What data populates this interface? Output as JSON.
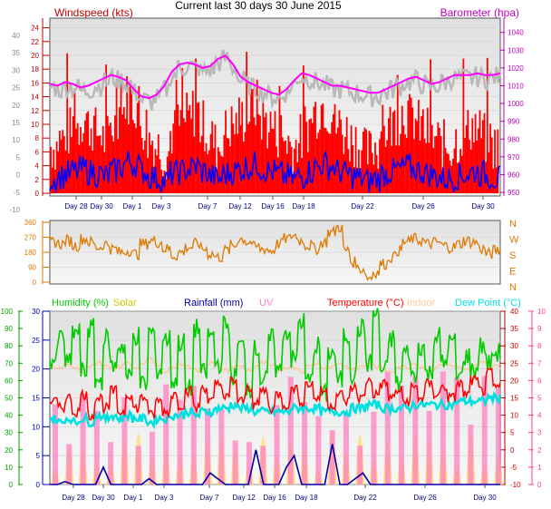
{
  "header": {
    "title": "Current last 30 days 30 June 2015"
  },
  "colors": {
    "windspeed": "#ff0000",
    "windgust": "#ff0000",
    "windavg": "#0000ff",
    "barometer": "#ff00ff",
    "barometer_gray": "#b8b8b8",
    "direction": "#e07800",
    "humidity": "#00cc00",
    "solar": "#c8c800",
    "rainfall": "#0000aa",
    "uv": "#ff80c0",
    "temperature": "#ff0000",
    "indoor": "#ffc8a0",
    "dewpoint": "#00e0e0",
    "axis_left_top": "#c00000",
    "axis_right_top": "#c000c0",
    "axis_left_bottom": "#00a000",
    "axis_right_bottom": "#ff4080",
    "plot_bg_top": "#e8e8e8",
    "plot_bg_bottom": "#ffffff"
  },
  "chart_data": [
    {
      "type": "line",
      "panel": "wind",
      "legend": {
        "left": "Windspeed (kts)",
        "right": "Barometer (hpa)"
      },
      "x_ticks": [
        "Day 28",
        "Day 30",
        "Day 1",
        "Day 3",
        "Day 7",
        "Day 12",
        "Day 16",
        "Day 18",
        "Day 22",
        "Day 26",
        "Day 30"
      ],
      "left_axis_outer": [
        40,
        35,
        30,
        25,
        20,
        15,
        10,
        5,
        0,
        -5,
        -10
      ],
      "left_axis_inner": [
        24,
        22,
        20,
        18,
        16,
        14,
        12,
        10,
        8,
        6,
        4,
        2,
        0
      ],
      "right_axis": [
        1040,
        1030,
        1020,
        1010,
        1000,
        990,
        980,
        970,
        960,
        950
      ],
      "ylim_windspeed": [
        0,
        25
      ],
      "ylim_barometer": [
        948,
        1048
      ],
      "series": [
        {
          "name": "Windspeed (kts)",
          "values": [
            6,
            7,
            8,
            9,
            10,
            9,
            8,
            7,
            9,
            11,
            13,
            12,
            9,
            7,
            6,
            5,
            8,
            9,
            10,
            11,
            9,
            7,
            6,
            8,
            9,
            10,
            11,
            12,
            10,
            9,
            8,
            7,
            6,
            7,
            9,
            11,
            12,
            11,
            9,
            8,
            7,
            6,
            5,
            6,
            8,
            9,
            10,
            11,
            10,
            9,
            8,
            7,
            6,
            6,
            7,
            8,
            9,
            8,
            7,
            6
          ]
        },
        {
          "name": "Barometer (hpa)",
          "values": [
            1011,
            1010,
            1012,
            1011,
            1009,
            1010,
            1012,
            1014,
            1016,
            1015,
            1013,
            1008,
            1004,
            1003,
            1005,
            1010,
            1018,
            1022,
            1023,
            1022,
            1020,
            1021,
            1025,
            1027,
            1022,
            1015,
            1012,
            1010,
            1008,
            1006,
            1005,
            1008,
            1013,
            1017,
            1016,
            1014,
            1012,
            1010,
            1010,
            1009,
            1008,
            1007,
            1006,
            1006,
            1008,
            1010,
            1012,
            1014,
            1015,
            1013,
            1011,
            1012,
            1014,
            1016,
            1016,
            1016,
            1017,
            1016,
            1016,
            1017
          ]
        }
      ]
    },
    {
      "type": "line",
      "panel": "direction",
      "right_labels": [
        "N",
        "W",
        "S",
        "E",
        "N"
      ],
      "left_axis": [
        360,
        270,
        180,
        90,
        0
      ],
      "ylim": [
        0,
        360
      ],
      "series": [
        {
          "name": "direction",
          "values": [
            240,
            230,
            250,
            220,
            260,
            240,
            210,
            230,
            200,
            180,
            190,
            170,
            230,
            250,
            240,
            200,
            160,
            180,
            210,
            230,
            200,
            170,
            150,
            190,
            220,
            260,
            240,
            210,
            200,
            190,
            230,
            260,
            280,
            250,
            220,
            200,
            240,
            300,
            330,
            190,
            120,
            80,
            30,
            60,
            110,
            150,
            190,
            240,
            260,
            250,
            230,
            240,
            220,
            210,
            230,
            250,
            240,
            200,
            170,
            190
          ]
        }
      ]
    },
    {
      "type": "line",
      "panel": "temperature",
      "legend": [
        "Humidity (%)",
        "Solar",
        "Rainfall (mm)",
        "UV",
        "Temperature (°C)",
        "Indoor",
        "Dew Point (°C)"
      ],
      "x_ticks": [
        "Day 28",
        "Day 30",
        "Day 1",
        "Day 3",
        "Day 7",
        "Day 12",
        "Day 16",
        "Day 18",
        "Day 22",
        "Day 26",
        "Day 30"
      ],
      "axis_humidity": [
        100,
        90,
        80,
        70,
        60,
        50,
        40,
        30,
        20,
        10,
        0
      ],
      "axis_rain": [
        30,
        25,
        20,
        15,
        10,
        5,
        0
      ],
      "axis_temp": [
        40,
        35,
        30,
        25,
        20,
        15,
        10,
        5,
        0,
        -5,
        -10
      ],
      "axis_uv": [
        10,
        9,
        8,
        7,
        6,
        5,
        4,
        3,
        2,
        1,
        0
      ],
      "ylim_temp": [
        -10,
        40
      ],
      "series": [
        {
          "name": "Humidity (%)",
          "values": [
            72,
            85,
            70,
            88,
            65,
            90,
            60,
            84,
            68,
            80,
            62,
            86,
            58,
            88,
            66,
            84,
            60,
            82,
            55,
            90,
            64,
            86,
            70,
            92,
            62,
            80,
            56,
            78,
            60,
            84,
            66,
            88,
            72,
            94,
            60,
            80,
            52,
            76,
            60,
            86,
            64,
            90,
            70,
            98,
            66,
            84,
            58,
            76,
            62,
            80,
            64,
            86,
            70,
            82,
            62,
            74,
            66,
            80,
            70,
            76
          ]
        },
        {
          "name": "Temperature (°C)",
          "values": [
            14,
            12,
            15,
            11,
            16,
            10,
            15,
            12,
            17,
            11,
            16,
            12,
            15,
            10,
            14,
            11,
            16,
            13,
            17,
            12,
            18,
            14,
            19,
            15,
            20,
            14,
            18,
            13,
            17,
            12,
            16,
            13,
            18,
            14,
            19,
            15,
            17,
            13,
            16,
            14,
            18,
            15,
            20,
            16,
            19,
            15,
            17,
            14,
            18,
            15,
            19,
            16,
            18,
            15,
            19,
            16,
            20,
            17,
            22,
            18
          ]
        },
        {
          "name": "Dew Point (°C)",
          "values": [
            9,
            8,
            9,
            8,
            9,
            8,
            10,
            9,
            10,
            9,
            10,
            9,
            9,
            8,
            9,
            9,
            10,
            10,
            11,
            10,
            11,
            11,
            12,
            12,
            13,
            12,
            12,
            11,
            11,
            11,
            11,
            11,
            12,
            12,
            12,
            12,
            11,
            11,
            11,
            11,
            12,
            12,
            13,
            13,
            12,
            12,
            12,
            12,
            13,
            13,
            13,
            13,
            13,
            13,
            14,
            14,
            14,
            14,
            15,
            15
          ]
        },
        {
          "name": "Indoor",
          "values": [
            24,
            23,
            25,
            24,
            23,
            24,
            25,
            24,
            23,
            24,
            25,
            24,
            25,
            26,
            24,
            23,
            24,
            25,
            24,
            23,
            24,
            25,
            24,
            23,
            24,
            24,
            23,
            24,
            25,
            24,
            23,
            24,
            24,
            23,
            24,
            25,
            24,
            24,
            25,
            24,
            23,
            24,
            25,
            24,
            23,
            23,
            24,
            24,
            25,
            24,
            23,
            24,
            25,
            24,
            24,
            23,
            24,
            25,
            24,
            24
          ]
        },
        {
          "name": "Rainfall (mm)",
          "values": [
            0,
            0,
            0.5,
            0,
            0,
            0,
            0,
            3,
            0,
            0,
            0,
            0,
            0,
            1,
            0,
            0,
            0,
            0,
            0,
            0,
            0,
            2,
            1,
            0,
            0,
            0,
            0,
            6,
            0,
            0,
            0,
            3,
            5,
            0,
            0,
            0,
            0,
            7,
            0,
            0,
            1,
            2,
            0,
            0,
            0,
            0,
            0,
            0,
            0,
            0,
            0,
            0,
            0,
            0,
            0,
            0,
            0,
            0,
            0,
            0
          ]
        }
      ]
    }
  ]
}
